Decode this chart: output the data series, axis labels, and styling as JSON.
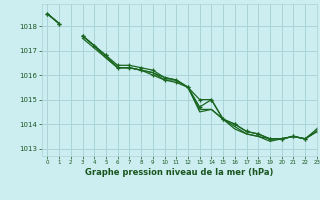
{
  "title": "",
  "xlabel": "Graphe pression niveau de la mer (hPa)",
  "ylabel": "",
  "bg_color": "#cceef0",
  "grid_color": "#aad4d8",
  "line_color": "#1a6620",
  "label_color": "#1a5520",
  "ylim": [
    1012.7,
    1018.9
  ],
  "xlim": [
    -0.5,
    23
  ],
  "yticks": [
    1013,
    1014,
    1015,
    1016,
    1017,
    1018
  ],
  "xticks": [
    0,
    1,
    2,
    3,
    4,
    5,
    6,
    7,
    8,
    9,
    10,
    11,
    12,
    13,
    14,
    15,
    16,
    17,
    18,
    19,
    20,
    21,
    22,
    23
  ],
  "series": [
    [
      1018.5,
      1018.1,
      null,
      1017.6,
      1017.2,
      1016.8,
      1016.3,
      1016.3,
      1016.2,
      1016.0,
      1015.8,
      1015.7,
      1015.5,
      1015.0,
      1015.0,
      1014.2,
      1014.0,
      1013.7,
      1013.6,
      1013.4,
      1013.4,
      1013.5,
      1013.4,
      1013.7
    ],
    [
      1018.5,
      1018.1,
      null,
      1017.5,
      1017.1,
      1016.7,
      1016.3,
      1016.3,
      1016.2,
      1016.1,
      1015.9,
      1015.8,
      1015.5,
      1014.6,
      1014.6,
      1014.2,
      1013.8,
      1013.6,
      1013.5,
      1013.3,
      1013.4,
      1013.5,
      1013.4,
      1013.7
    ],
    [
      1018.5,
      1018.1,
      null,
      1017.6,
      1017.2,
      1016.8,
      1016.4,
      1016.4,
      1016.3,
      1016.2,
      1015.9,
      1015.8,
      1015.5,
      1014.7,
      1015.0,
      1014.2,
      1014.0,
      1013.7,
      1013.6,
      1013.4,
      1013.4,
      1013.5,
      1013.4,
      1013.8
    ],
    [
      1018.5,
      1018.1,
      null,
      1017.6,
      1017.2,
      1016.7,
      1016.3,
      1016.3,
      1016.2,
      1016.1,
      1015.8,
      1015.8,
      1015.5,
      1014.5,
      1014.6,
      1014.2,
      1013.9,
      1013.6,
      1013.5,
      1013.4,
      1013.4,
      1013.5,
      1013.4,
      1013.7
    ]
  ],
  "marker_series": [
    0,
    2
  ],
  "marker": "+"
}
